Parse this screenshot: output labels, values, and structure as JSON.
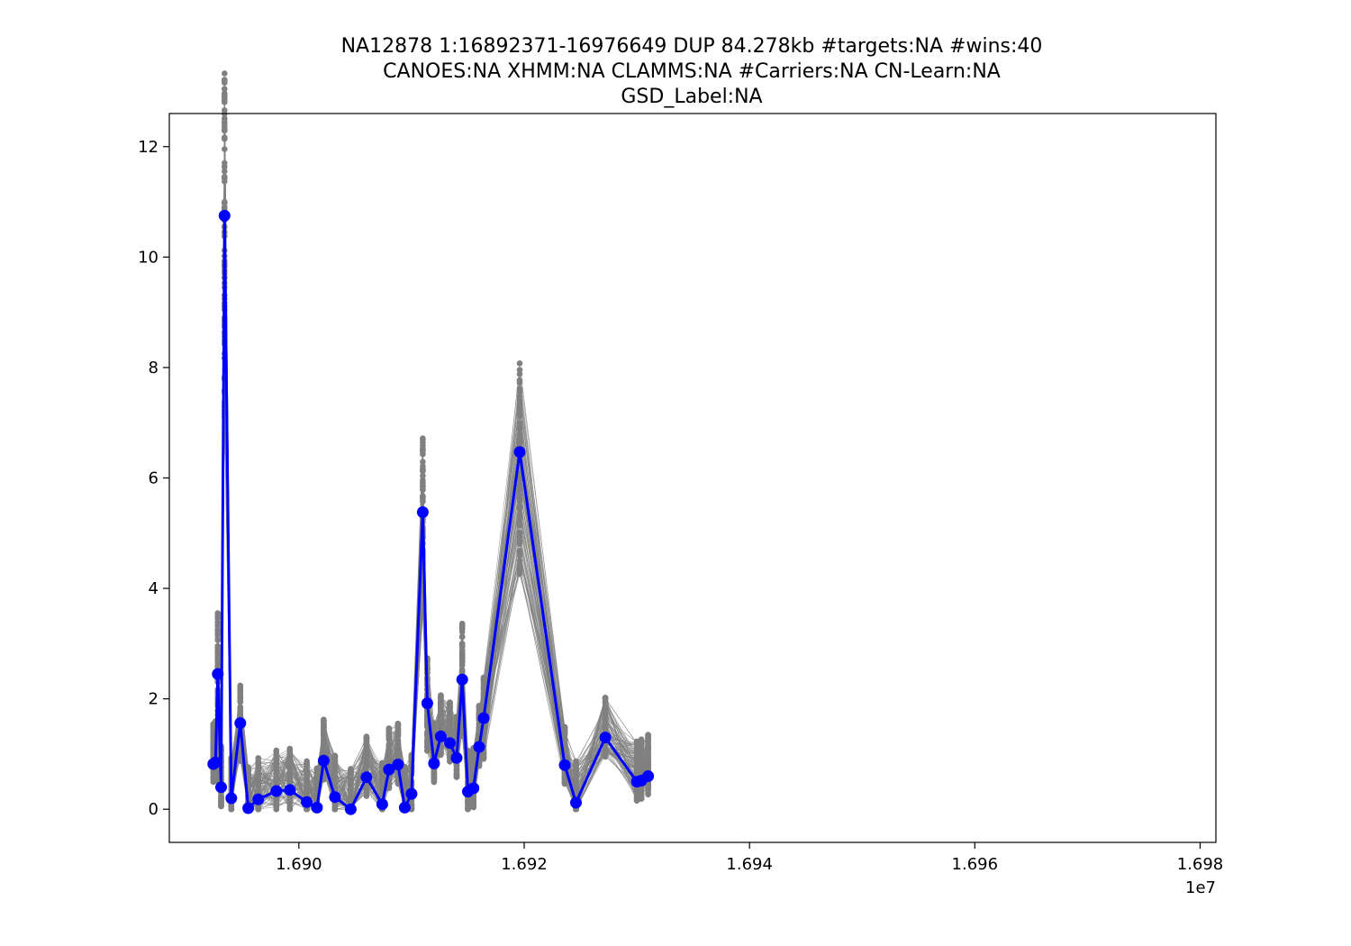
{
  "chart_data": {
    "type": "line",
    "title_lines": [
      "NA12878 1:16892371-16976649 DUP 84.278kb #targets:NA #wins:40",
      "CANOES:NA XHMM:NA CLAMMS:NA #Carriers:NA CN-Learn:NA",
      "GSD_Label:NA"
    ],
    "xlabel": "",
    "ylabel": "",
    "x_offset_label": "1e7",
    "xlim": [
      1.68885,
      1.69814
    ],
    "ylim": [
      -0.6,
      12.6
    ],
    "x_ticks": [
      1.69,
      1.692,
      1.694,
      1.696,
      1.698
    ],
    "x_tick_labels": [
      "1.690",
      "1.692",
      "1.694",
      "1.696",
      "1.698"
    ],
    "y_ticks": [
      0,
      2,
      4,
      6,
      8,
      10,
      12
    ],
    "y_tick_labels": [
      "0",
      "2",
      "4",
      "6",
      "8",
      "10",
      "12"
    ],
    "grid": false,
    "colors": {
      "highlight": "#0000ff",
      "background_samples": "#808080"
    },
    "highlight_series": {
      "x": [
        1.68924,
        1.68926,
        1.68928,
        1.68931,
        1.68934,
        1.6894,
        1.68948,
        1.68955,
        1.68964,
        1.6898,
        1.68992,
        1.69007,
        1.69016,
        1.69022,
        1.69032,
        1.69046,
        1.6906,
        1.69074,
        1.6908,
        1.69088,
        1.69094,
        1.691,
        1.6911,
        1.69114,
        1.6912,
        1.69126,
        1.69134,
        1.6914,
        1.69145,
        1.6915,
        1.69155,
        1.6916,
        1.69164,
        1.69196,
        1.69236,
        1.69246,
        1.69272,
        1.693,
        1.69304,
        1.6931
      ],
      "y": [
        0.82,
        0.85,
        2.45,
        0.4,
        10.75,
        0.2,
        1.56,
        0.02,
        0.18,
        0.33,
        0.35,
        0.13,
        0.03,
        0.88,
        0.22,
        0.0,
        0.58,
        0.09,
        0.72,
        0.81,
        0.03,
        0.28,
        5.38,
        1.92,
        0.83,
        1.32,
        1.2,
        0.93,
        2.35,
        0.32,
        0.38,
        1.13,
        1.65,
        6.47,
        0.8,
        0.12,
        1.3,
        0.5,
        0.52,
        0.6
      ]
    }
  }
}
